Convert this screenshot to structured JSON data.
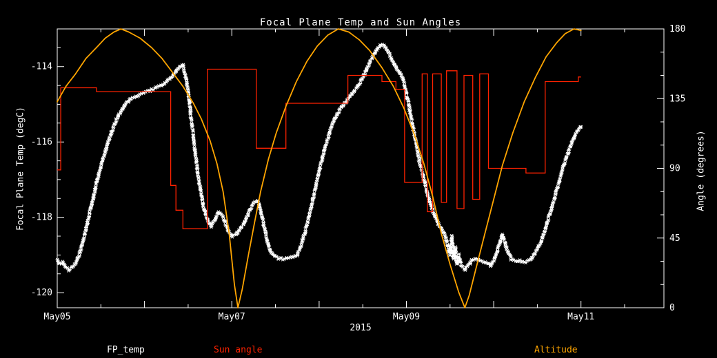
{
  "title": "Focal Plane Temp and Sun Angles",
  "x_axis": {
    "label": "2015",
    "range": [
      5.0,
      11.95
    ],
    "major_ticks": [
      {
        "value": 5,
        "label": "May05"
      },
      {
        "value": 7,
        "label": "May07"
      },
      {
        "value": 9,
        "label": "May09"
      },
      {
        "value": 11,
        "label": "May11"
      }
    ],
    "day_ticks": [
      6,
      8,
      10
    ],
    "minor_ticks": [
      5.5,
      6.5,
      7.5,
      8.5,
      9.5,
      10.5,
      11.5
    ]
  },
  "y_left_axis": {
    "label": "Focal Plane Temp (degC)",
    "range": [
      -120.4,
      -113.0
    ],
    "major_ticks": [
      -114,
      -116,
      -118,
      -120
    ],
    "minor_step": 0.5
  },
  "y_right_axis": {
    "label": "Angle (degrees)",
    "range": [
      0,
      180
    ],
    "major_ticks": [
      0,
      45,
      90,
      135,
      180
    ],
    "minor_step": 15
  },
  "legend": [
    {
      "label": "FP_temp",
      "color": "#ffffff"
    },
    {
      "label": "Sun angle",
      "color": "#ff2200"
    },
    {
      "label": "Altitude",
      "color": "#ffa500"
    }
  ],
  "colors": {
    "background": "#000000",
    "axis": "#ffffff",
    "fp_temp": "#ffffff",
    "sun_angle": "#ff2200",
    "altitude": "#ffa500"
  },
  "chart_data": {
    "type": "line",
    "title": "Focal Plane Temp and Sun Angles",
    "xlabel": "2015",
    "x_units": "day of May 2015",
    "xlim": [
      5.0,
      11.95
    ],
    "ylabel_left": "Focal Plane Temp (degC)",
    "ylim_left": [
      -120.4,
      -113.0
    ],
    "ylabel_right": "Angle (degrees)",
    "ylim_right": [
      0,
      180
    ],
    "grid": false,
    "legend_position": "bottom",
    "series": [
      {
        "name": "FP_temp",
        "axis": "left",
        "style": "scatter",
        "marker": "asterisk",
        "color": "#ffffff",
        "points": [
          [
            5.0,
            -119.15
          ],
          [
            5.03,
            -119.25
          ],
          [
            5.06,
            -119.2
          ],
          [
            5.09,
            -119.3
          ],
          [
            5.13,
            -119.4
          ],
          [
            5.16,
            -119.35
          ],
          [
            5.2,
            -119.25
          ],
          [
            5.25,
            -119.0
          ],
          [
            5.3,
            -118.6
          ],
          [
            5.35,
            -118.1
          ],
          [
            5.4,
            -117.6
          ],
          [
            5.45,
            -117.1
          ],
          [
            5.5,
            -116.65
          ],
          [
            5.55,
            -116.25
          ],
          [
            5.6,
            -115.9
          ],
          [
            5.65,
            -115.55
          ],
          [
            5.7,
            -115.3
          ],
          [
            5.75,
            -115.1
          ],
          [
            5.8,
            -114.95
          ],
          [
            5.85,
            -114.85
          ],
          [
            5.9,
            -114.8
          ],
          [
            5.95,
            -114.75
          ],
          [
            6.0,
            -114.7
          ],
          [
            6.05,
            -114.65
          ],
          [
            6.1,
            -114.6
          ],
          [
            6.15,
            -114.55
          ],
          [
            6.2,
            -114.5
          ],
          [
            6.25,
            -114.4
          ],
          [
            6.3,
            -114.3
          ],
          [
            6.35,
            -114.15
          ],
          [
            6.4,
            -114.0
          ],
          [
            6.44,
            -113.95
          ],
          [
            6.48,
            -114.35
          ],
          [
            6.52,
            -115.05
          ],
          [
            6.56,
            -115.9
          ],
          [
            6.6,
            -116.65
          ],
          [
            6.64,
            -117.25
          ],
          [
            6.68,
            -117.75
          ],
          [
            6.72,
            -118.05
          ],
          [
            6.76,
            -118.25
          ],
          [
            6.8,
            -118.1
          ],
          [
            6.85,
            -117.85
          ],
          [
            6.9,
            -118.0
          ],
          [
            6.95,
            -118.3
          ],
          [
            7.0,
            -118.5
          ],
          [
            7.05,
            -118.45
          ],
          [
            7.1,
            -118.3
          ],
          [
            7.15,
            -118.1
          ],
          [
            7.2,
            -117.85
          ],
          [
            7.25,
            -117.6
          ],
          [
            7.3,
            -117.55
          ],
          [
            7.35,
            -118.0
          ],
          [
            7.4,
            -118.6
          ],
          [
            7.45,
            -118.95
          ],
          [
            7.5,
            -119.05
          ],
          [
            7.55,
            -119.1
          ],
          [
            7.6,
            -119.1
          ],
          [
            7.65,
            -119.1
          ],
          [
            7.7,
            -119.05
          ],
          [
            7.75,
            -119.0
          ],
          [
            7.8,
            -118.7
          ],
          [
            7.85,
            -118.3
          ],
          [
            7.9,
            -117.8
          ],
          [
            7.95,
            -117.3
          ],
          [
            8.0,
            -116.8
          ],
          [
            8.05,
            -116.3
          ],
          [
            8.1,
            -115.9
          ],
          [
            8.15,
            -115.55
          ],
          [
            8.2,
            -115.3
          ],
          [
            8.25,
            -115.1
          ],
          [
            8.3,
            -114.95
          ],
          [
            8.35,
            -114.8
          ],
          [
            8.4,
            -114.65
          ],
          [
            8.45,
            -114.5
          ],
          [
            8.5,
            -114.3
          ],
          [
            8.55,
            -114.05
          ],
          [
            8.6,
            -113.8
          ],
          [
            8.65,
            -113.6
          ],
          [
            8.7,
            -113.45
          ],
          [
            8.73,
            -113.4
          ],
          [
            8.76,
            -113.5
          ],
          [
            8.8,
            -113.65
          ],
          [
            8.85,
            -113.9
          ],
          [
            8.9,
            -114.1
          ],
          [
            8.95,
            -114.25
          ],
          [
            9.0,
            -114.7
          ],
          [
            9.05,
            -115.3
          ],
          [
            9.1,
            -115.9
          ],
          [
            9.15,
            -116.5
          ],
          [
            9.2,
            -117.0
          ],
          [
            9.25,
            -117.45
          ],
          [
            9.3,
            -117.8
          ],
          [
            9.35,
            -118.1
          ],
          [
            9.4,
            -118.3
          ],
          [
            9.44,
            -118.45
          ],
          [
            9.47,
            -118.75
          ],
          [
            9.5,
            -119.0
          ],
          [
            9.52,
            -118.5
          ],
          [
            9.54,
            -119.1
          ],
          [
            9.56,
            -118.8
          ],
          [
            9.58,
            -119.25
          ],
          [
            9.6,
            -119.0
          ],
          [
            9.63,
            -119.3
          ],
          [
            9.67,
            -119.4
          ],
          [
            9.7,
            -119.3
          ],
          [
            9.75,
            -119.15
          ],
          [
            9.8,
            -119.1
          ],
          [
            9.85,
            -119.15
          ],
          [
            9.9,
            -119.2
          ],
          [
            9.95,
            -119.25
          ],
          [
            9.97,
            -119.3
          ],
          [
            10.0,
            -119.15
          ],
          [
            10.05,
            -118.85
          ],
          [
            10.1,
            -118.45
          ],
          [
            10.15,
            -118.85
          ],
          [
            10.2,
            -119.1
          ],
          [
            10.25,
            -119.15
          ],
          [
            10.3,
            -119.15
          ],
          [
            10.35,
            -119.2
          ],
          [
            10.4,
            -119.15
          ],
          [
            10.45,
            -119.05
          ],
          [
            10.5,
            -118.85
          ],
          [
            10.55,
            -118.6
          ],
          [
            10.6,
            -118.25
          ],
          [
            10.65,
            -117.85
          ],
          [
            10.7,
            -117.45
          ],
          [
            10.75,
            -117.05
          ],
          [
            10.8,
            -116.65
          ],
          [
            10.85,
            -116.3
          ],
          [
            10.9,
            -116.0
          ],
          [
            10.95,
            -115.75
          ],
          [
            11.0,
            -115.6
          ]
        ]
      },
      {
        "name": "Sun angle",
        "axis": "right",
        "style": "step",
        "color": "#ff2200",
        "points": [
          [
            5.0,
            89
          ],
          [
            5.04,
            142
          ],
          [
            5.45,
            139.5
          ],
          [
            6.3,
            79
          ],
          [
            6.36,
            63
          ],
          [
            6.44,
            51
          ],
          [
            6.72,
            154
          ],
          [
            7.28,
            103
          ],
          [
            7.62,
            132
          ],
          [
            8.33,
            150
          ],
          [
            8.72,
            146
          ],
          [
            8.88,
            141
          ],
          [
            8.98,
            81
          ],
          [
            9.18,
            151
          ],
          [
            9.24,
            62
          ],
          [
            9.3,
            151
          ],
          [
            9.4,
            68
          ],
          [
            9.46,
            153
          ],
          [
            9.58,
            64
          ],
          [
            9.66,
            150
          ],
          [
            9.76,
            70
          ],
          [
            9.84,
            151
          ],
          [
            9.94,
            90
          ],
          [
            10.37,
            87
          ],
          [
            10.59,
            146
          ],
          [
            10.97,
            149
          ],
          [
            11.0,
            149
          ]
        ]
      },
      {
        "name": "Altitude",
        "axis": "right",
        "style": "line",
        "color": "#ffa500",
        "points": [
          [
            5.0,
            133
          ],
          [
            5.1,
            143
          ],
          [
            5.21,
            151
          ],
          [
            5.33,
            161
          ],
          [
            5.45,
            168
          ],
          [
            5.55,
            174
          ],
          [
            5.65,
            178
          ],
          [
            5.73,
            180
          ],
          [
            5.82,
            178
          ],
          [
            5.95,
            174
          ],
          [
            6.08,
            168
          ],
          [
            6.2,
            161
          ],
          [
            6.32,
            152
          ],
          [
            6.44,
            143
          ],
          [
            6.56,
            132
          ],
          [
            6.65,
            122
          ],
          [
            6.75,
            108
          ],
          [
            6.83,
            93
          ],
          [
            6.9,
            75
          ],
          [
            6.97,
            48
          ],
          [
            7.03,
            15
          ],
          [
            7.07,
            0
          ],
          [
            7.12,
            12
          ],
          [
            7.19,
            34
          ],
          [
            7.26,
            55
          ],
          [
            7.33,
            75
          ],
          [
            7.42,
            96
          ],
          [
            7.51,
            113
          ],
          [
            7.62,
            130
          ],
          [
            7.74,
            146
          ],
          [
            7.86,
            159
          ],
          [
            7.98,
            169
          ],
          [
            8.1,
            176
          ],
          [
            8.22,
            180
          ],
          [
            8.34,
            178
          ],
          [
            8.46,
            173
          ],
          [
            8.58,
            166
          ],
          [
            8.72,
            155
          ],
          [
            8.85,
            143
          ],
          [
            8.97,
            129
          ],
          [
            9.09,
            112
          ],
          [
            9.2,
            93
          ],
          [
            9.3,
            72
          ],
          [
            9.4,
            48
          ],
          [
            9.5,
            28
          ],
          [
            9.6,
            10
          ],
          [
            9.67,
            0
          ],
          [
            9.72,
            8
          ],
          [
            9.8,
            26
          ],
          [
            9.9,
            48
          ],
          [
            10.0,
            70
          ],
          [
            10.1,
            92
          ],
          [
            10.22,
            113
          ],
          [
            10.35,
            133
          ],
          [
            10.48,
            149
          ],
          [
            10.6,
            162
          ],
          [
            10.72,
            171
          ],
          [
            10.82,
            177
          ],
          [
            10.92,
            180
          ],
          [
            11.0,
            179
          ]
        ]
      }
    ]
  }
}
